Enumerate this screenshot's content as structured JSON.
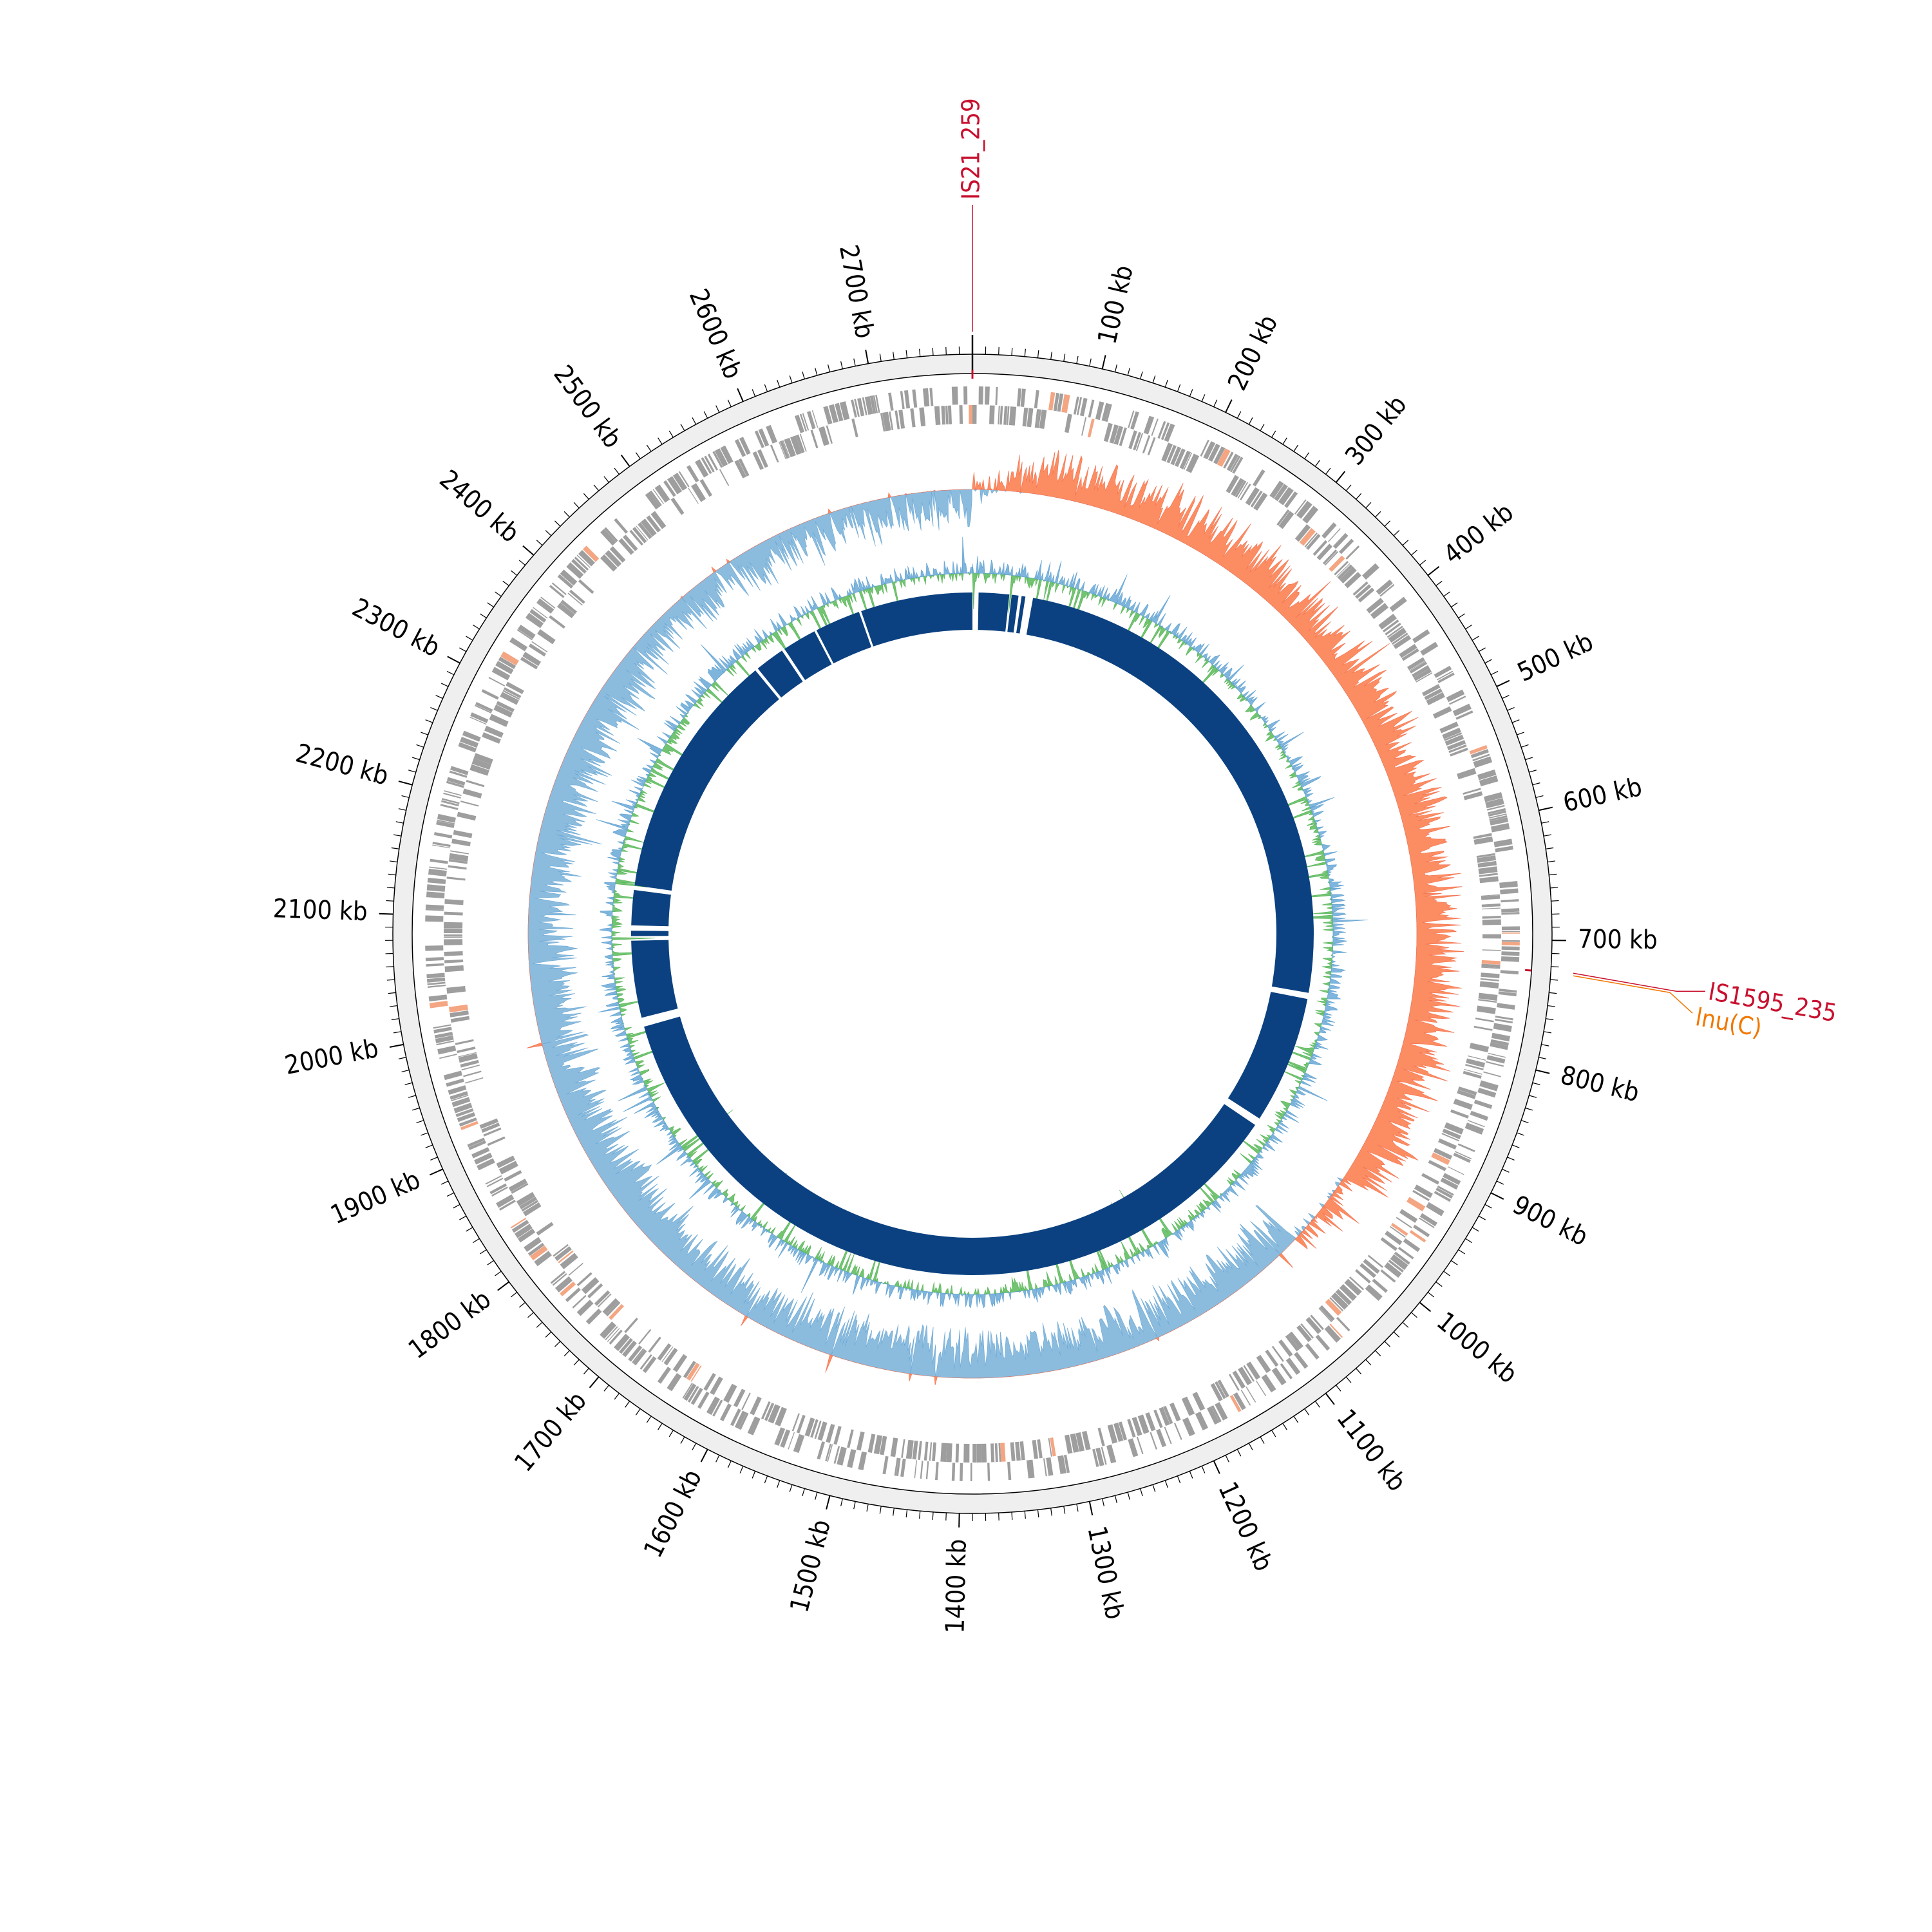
{
  "genome_size_kb": 2780,
  "tick_labels": [
    {
      "kb": 100,
      "label": "100 kb"
    },
    {
      "kb": 200,
      "label": "200 kb"
    },
    {
      "kb": 300,
      "label": "300 kb"
    },
    {
      "kb": 400,
      "label": "400 kb"
    },
    {
      "kb": 500,
      "label": "500 kb"
    },
    {
      "kb": 600,
      "label": "600 kb"
    },
    {
      "kb": 700,
      "label": "700 kb"
    },
    {
      "kb": 800,
      "label": "800 kb"
    },
    {
      "kb": 900,
      "label": "900 kb"
    },
    {
      "kb": 1000,
      "label": "1000 kb"
    },
    {
      "kb": 1100,
      "label": "1100 kb"
    },
    {
      "kb": 1200,
      "label": "1200 kb"
    },
    {
      "kb": 1300,
      "label": "1300 kb"
    },
    {
      "kb": 1400,
      "label": "1400 kb"
    },
    {
      "kb": 1500,
      "label": "1500 kb"
    },
    {
      "kb": 1600,
      "label": "1600 kb"
    },
    {
      "kb": 1700,
      "label": "1700 kb"
    },
    {
      "kb": 1800,
      "label": "1800 kb"
    },
    {
      "kb": 1900,
      "label": "1900 kb"
    },
    {
      "kb": 2000,
      "label": "2000 kb"
    },
    {
      "kb": 2100,
      "label": "2100 kb"
    },
    {
      "kb": 2200,
      "label": "2200 kb"
    },
    {
      "kb": 2300,
      "label": "2300 kb"
    },
    {
      "kb": 2400,
      "label": "2400 kb"
    },
    {
      "kb": 2500,
      "label": "2500 kb"
    },
    {
      "kb": 2600,
      "label": "2600 kb"
    },
    {
      "kb": 2700,
      "label": "2700 kb"
    }
  ],
  "features": [
    {
      "label": "IS21_259",
      "kb": 0,
      "color": "#c8102e"
    },
    {
      "label": "IS1595_235",
      "kb": 724,
      "color": "#c8102e"
    },
    {
      "label": "lnu(C)",
      "kb": 726,
      "color": "#f07800"
    }
  ],
  "contig_gaps_kb": [
    [
      0.0,
      8.0
    ],
    [
      48.0,
      51.0
    ],
    [
      60.0,
      64.0
    ],
    [
      69.0,
      79.0
    ],
    [
      772.0,
      780.0
    ],
    [
      948.0,
      958.0
    ],
    [
      1963.0,
      1975.0
    ],
    [
      2076.0,
      2082.0
    ],
    [
      2089.0,
      2096.0
    ],
    [
      2142.0,
      2148.0
    ],
    [
      2475.0,
      2479.0
    ],
    [
      2518.0,
      2522.0
    ],
    [
      2567.0,
      2570.0
    ],
    [
      2630.0,
      2633.0
    ]
  ],
  "colors": {
    "ring_background": "#efefef",
    "gene_feature": "#9e9e9e",
    "gene_highlight": "#f4a582",
    "gc_skew_positive": "#fc8d62",
    "gc_skew_negative": "#8bbcde",
    "gc_content_low": "#72c472",
    "gc_content_high": "#7fb5dc",
    "contig": "#0b4180"
  }
}
